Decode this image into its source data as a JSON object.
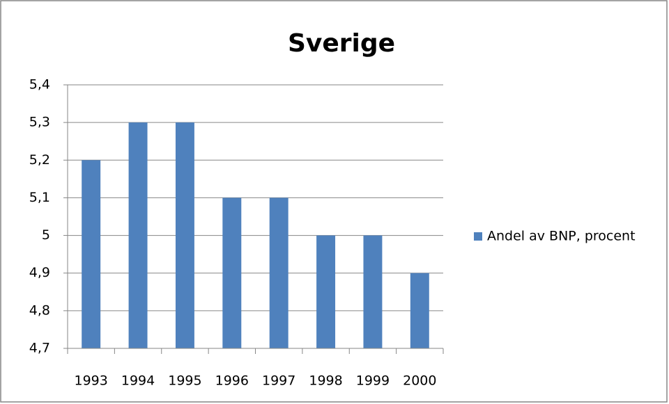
{
  "chart_data": {
    "type": "bar",
    "title": "Sverige",
    "categories": [
      "1993",
      "1994",
      "1995",
      "1996",
      "1997",
      "1998",
      "1999",
      "2000"
    ],
    "series": [
      {
        "name": "Andel av BNP, procent",
        "color": "#4f81bd",
        "values": [
          5.2,
          5.3,
          5.3,
          5.1,
          5.1,
          5.0,
          5.0,
          4.9
        ]
      }
    ],
    "ylim": [
      4.7,
      5.4
    ],
    "yticks": [
      {
        "value": 4.7,
        "label": "4,7"
      },
      {
        "value": 4.8,
        "label": "4,8"
      },
      {
        "value": 4.9,
        "label": "4,9"
      },
      5,
      {
        "value": 5.1,
        "label": "5,1"
      },
      {
        "value": 5.2,
        "label": "5,2"
      },
      {
        "value": 5.3,
        "label": "5,3"
      },
      {
        "value": 5.4,
        "label": "5,4"
      }
    ],
    "grid": true,
    "legend": "right"
  }
}
